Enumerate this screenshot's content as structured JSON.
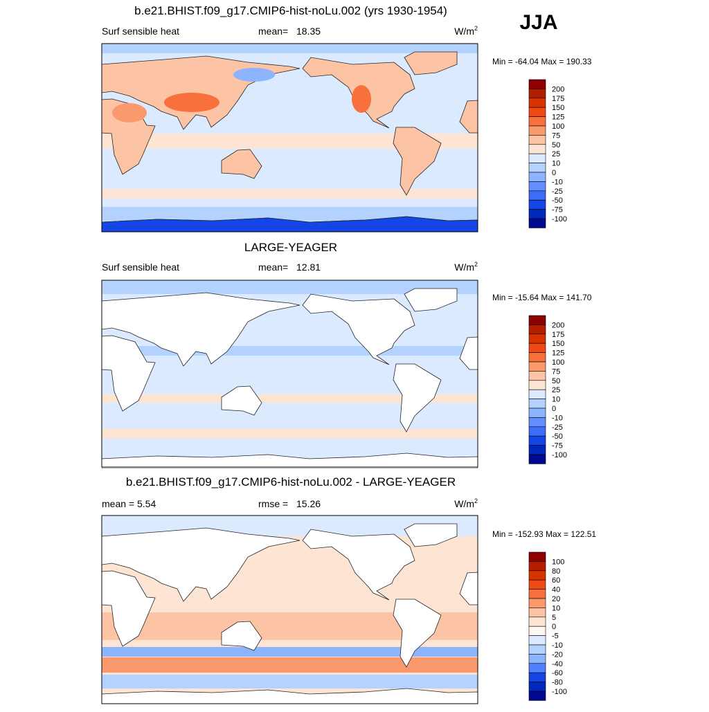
{
  "season": "JJA",
  "panels": [
    {
      "title": "b.e21.BHIST.f09_g17.CMIP6-hist-noLu.002 (yrs 1930-1954)",
      "left_label": "Surf sensible heat",
      "stat_label": "mean=",
      "stat_value": "18.35",
      "units": {
        "base": "W/m",
        "sup": "2"
      },
      "minmax": "Min = -64.04 Max = 190.33",
      "colorbar": {
        "labels": [
          200,
          175,
          150,
          125,
          100,
          75,
          50,
          25,
          10,
          0,
          -10,
          -25,
          -50,
          -75,
          -100
        ],
        "colors": [
          "#8c0000",
          "#b41e00",
          "#d83200",
          "#f04a14",
          "#f8703c",
          "#fa9a6c",
          "#fcc4a4",
          "#fee4d2",
          "#dbeaff",
          "#b4d2ff",
          "#8cb4ff",
          "#6490ff",
          "#3c6cf8",
          "#1446e6",
          "#0028bc",
          "#000890"
        ]
      }
    },
    {
      "title": "LARGE-YEAGER",
      "left_label": "Surf sensible heat",
      "stat_label": "mean=",
      "stat_value": "12.81",
      "units": {
        "base": "W/m",
        "sup": "2"
      },
      "minmax": "Min = -15.64 Max = 141.70",
      "colorbar": {
        "labels": [
          200,
          175,
          150,
          125,
          100,
          75,
          50,
          25,
          10,
          0,
          -10,
          -25,
          -50,
          -75,
          -100
        ],
        "colors": [
          "#8c0000",
          "#b41e00",
          "#d83200",
          "#f04a14",
          "#f8703c",
          "#fa9a6c",
          "#fcc4a4",
          "#fee4d2",
          "#dbeaff",
          "#b4d2ff",
          "#8cb4ff",
          "#6490ff",
          "#3c6cf8",
          "#1446e6",
          "#0028bc",
          "#000890"
        ]
      }
    },
    {
      "title": "b.e21.BHIST.f09_g17.CMIP6-hist-noLu.002 - LARGE-YEAGER",
      "left_label": "mean =   5.54",
      "stat_label": "rmse =",
      "stat_value": "15.26",
      "units": {
        "base": "W/m",
        "sup": "2"
      },
      "minmax": "Min = -152.93 Max = 122.51",
      "colorbar": {
        "labels": [
          100,
          80,
          60,
          40,
          20,
          10,
          5,
          0,
          -5,
          -10,
          -20,
          -40,
          -60,
          -80,
          -100
        ],
        "colors": [
          "#8c0000",
          "#b41e00",
          "#d83200",
          "#f04a14",
          "#f8703c",
          "#fa9a6c",
          "#fcc4a4",
          "#fee4d2",
          "#fff8f2",
          "#dbeaff",
          "#b4d2ff",
          "#8cb4ff",
          "#5080ff",
          "#1446e6",
          "#0028bc",
          "#000890"
        ]
      }
    }
  ]
}
